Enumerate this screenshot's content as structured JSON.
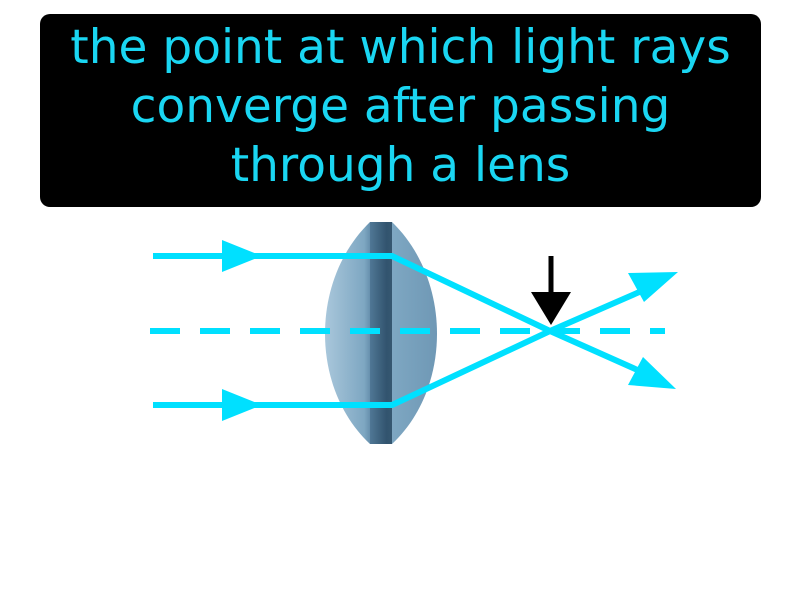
{
  "definition": {
    "lines": [
      "the point at which light rays",
      "converge after passing",
      "through a lens"
    ],
    "text_color": "#1ad6f2",
    "background_color": "#000000"
  },
  "diagram": {
    "ray_color": "#00e0ff",
    "pointer_color": "#000000",
    "lens_colors": [
      "#9ec0d6",
      "#7ba3bd",
      "#547d9a",
      "#3a5f7a"
    ],
    "pointer_icon": "down-arrow-icon"
  }
}
